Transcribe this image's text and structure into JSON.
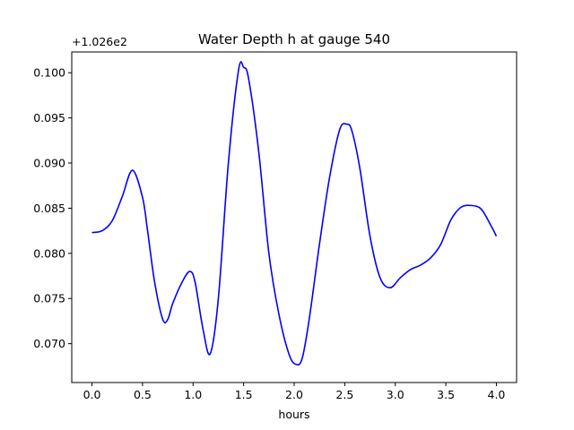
{
  "chart_data": {
    "type": "line",
    "title": "Water Depth h at gauge 540",
    "xlabel": "hours",
    "ylabel": "",
    "offset_label": "+1.026e2",
    "xlim": [
      -0.2,
      4.2
    ],
    "ylim": [
      0.0657,
      0.1023
    ],
    "xticks": [
      0.0,
      0.5,
      1.0,
      1.5,
      2.0,
      2.5,
      3.0,
      3.5,
      4.0
    ],
    "xtick_labels": [
      "0.0",
      "0.5",
      "1.0",
      "1.5",
      "2.0",
      "2.5",
      "3.0",
      "3.5",
      "4.0"
    ],
    "yticks": [
      0.07,
      0.075,
      0.08,
      0.085,
      0.09,
      0.095,
      0.1
    ],
    "ytick_labels": [
      "0.070",
      "0.075",
      "0.080",
      "0.085",
      "0.090",
      "0.095",
      "0.100"
    ],
    "grid": false,
    "series": [
      {
        "color": "#0000ff",
        "x": [
          0.0,
          0.1,
          0.2,
          0.3,
          0.4,
          0.5,
          0.55,
          0.62,
          0.7,
          0.75,
          0.8,
          0.9,
          0.97,
          1.02,
          1.1,
          1.17,
          1.25,
          1.35,
          1.45,
          1.5,
          1.55,
          1.65,
          1.75,
          1.85,
          1.95,
          2.02,
          2.08,
          2.15,
          2.25,
          2.35,
          2.45,
          2.52,
          2.57,
          2.65,
          2.75,
          2.85,
          2.95,
          3.05,
          3.15,
          3.25,
          3.35,
          3.45,
          3.55,
          3.65,
          3.75,
          3.85,
          3.95,
          4.0
        ],
        "y": [
          0.0823,
          0.0825,
          0.0836,
          0.0863,
          0.0892,
          0.0862,
          0.0825,
          0.0768,
          0.0727,
          0.0727,
          0.0745,
          0.077,
          0.078,
          0.0768,
          0.0715,
          0.0689,
          0.075,
          0.0901,
          0.1003,
          0.1006,
          0.0993,
          0.0912,
          0.08,
          0.0732,
          0.0688,
          0.0677,
          0.0684,
          0.0728,
          0.081,
          0.0884,
          0.0937,
          0.0943,
          0.0936,
          0.0894,
          0.0819,
          0.0773,
          0.0762,
          0.0773,
          0.0782,
          0.0787,
          0.0795,
          0.081,
          0.0837,
          0.0851,
          0.0853,
          0.0849,
          0.083,
          0.0819
        ]
      }
    ]
  }
}
